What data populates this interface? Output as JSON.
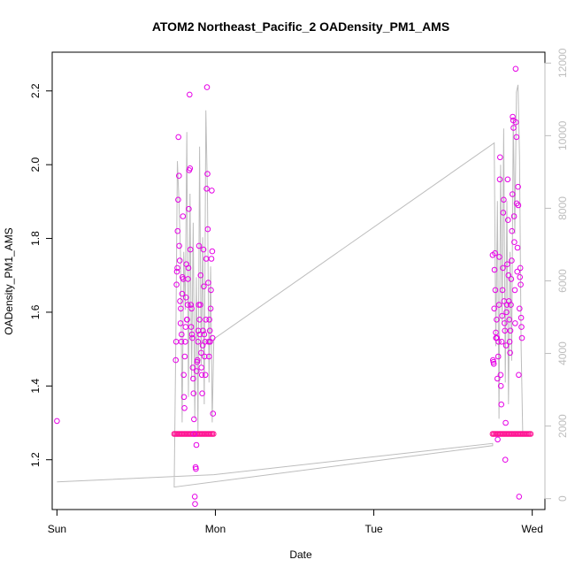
{
  "chart_data": {
    "type": "scatter",
    "title": "ATOM2 Northeast_Pacific_2 OADensity_PM1_AMS",
    "xlabel": "Date",
    "ylabel": "OADensity_PM1_AMS",
    "x_ticks": [
      "Sun",
      "Mon",
      "Tue",
      "Wed"
    ],
    "xlim_days": [
      -0.03,
      3.08
    ],
    "ylim": [
      1.065,
      2.305
    ],
    "y_ticks": [
      1.2,
      1.4,
      1.6,
      1.8,
      2.0,
      2.2
    ],
    "y_tick_labels": [
      "1.2",
      "1.4",
      "1.6",
      "1.8",
      "2.0",
      "2.2"
    ],
    "y2_ticks": [
      0,
      2000,
      4000,
      6000,
      8000,
      10000,
      12000
    ],
    "y2_tick_labels": [
      "0",
      "2000",
      "4000",
      "6000",
      "8000",
      "10000",
      "12000"
    ],
    "y2lim": [
      -300,
      12300
    ],
    "grid": false,
    "colors": {
      "points": "#e600e6",
      "band": "#ff1493",
      "line": "#bdbdbd"
    },
    "series": [
      {
        "kind": "points",
        "points": [
          [
            0.0,
            1.305
          ],
          [
            0.75,
            1.47
          ],
          [
            0.752,
            1.52
          ],
          [
            0.755,
            1.675
          ],
          [
            0.757,
            1.71
          ],
          [
            0.76,
            1.72
          ],
          [
            0.762,
            1.82
          ],
          [
            0.765,
            1.905
          ],
          [
            0.767,
            2.075
          ],
          [
            0.77,
            1.97
          ],
          [
            0.772,
            1.78
          ],
          [
            0.775,
            1.74
          ],
          [
            0.777,
            1.63
          ],
          [
            0.78,
            1.57
          ],
          [
            0.782,
            1.61
          ],
          [
            0.785,
            1.52
          ],
          [
            0.787,
            1.54
          ],
          [
            0.79,
            1.65
          ],
          [
            0.792,
            1.695
          ],
          [
            0.795,
            1.86
          ],
          [
            0.797,
            1.69
          ],
          [
            0.8,
            1.43
          ],
          [
            0.802,
            1.37
          ],
          [
            0.805,
            1.34
          ],
          [
            0.807,
            1.48
          ],
          [
            0.81,
            1.52
          ],
          [
            0.812,
            1.56
          ],
          [
            0.815,
            1.64
          ],
          [
            0.817,
            1.73
          ],
          [
            0.82,
            1.58
          ],
          [
            0.822,
            1.58
          ],
          [
            0.825,
            1.62
          ],
          [
            0.827,
            1.69
          ],
          [
            0.83,
            1.72
          ],
          [
            0.832,
            1.88
          ],
          [
            0.835,
            1.985
          ],
          [
            0.837,
            2.19
          ],
          [
            0.84,
            1.99
          ],
          [
            0.842,
            1.77
          ],
          [
            0.845,
            1.62
          ],
          [
            0.847,
            1.56
          ],
          [
            0.85,
            1.61
          ],
          [
            0.852,
            1.54
          ],
          [
            0.855,
            1.53
          ],
          [
            0.857,
            1.45
          ],
          [
            0.86,
            1.42
          ],
          [
            0.862,
            1.38
          ],
          [
            0.865,
            1.31
          ],
          [
            0.867,
            1.27
          ],
          [
            0.87,
            1.1
          ],
          [
            0.872,
            1.08
          ],
          [
            0.875,
            1.18
          ],
          [
            0.877,
            1.175
          ],
          [
            0.88,
            1.24
          ],
          [
            0.882,
            1.44
          ],
          [
            0.885,
            1.465
          ],
          [
            0.887,
            1.47
          ],
          [
            0.89,
            1.52
          ],
          [
            0.892,
            1.55
          ],
          [
            0.895,
            1.62
          ],
          [
            0.897,
            1.78
          ],
          [
            0.9,
            1.58
          ],
          [
            0.902,
            1.54
          ],
          [
            0.905,
            1.62
          ],
          [
            0.907,
            1.7
          ],
          [
            0.91,
            1.49
          ],
          [
            0.912,
            1.45
          ],
          [
            0.915,
            1.43
          ],
          [
            0.917,
            1.38
          ],
          [
            0.92,
            1.51
          ],
          [
            0.922,
            1.55
          ],
          [
            0.925,
            1.77
          ],
          [
            0.927,
            1.67
          ],
          [
            0.93,
            1.54
          ],
          [
            0.932,
            1.48
          ],
          [
            0.935,
            1.52
          ],
          [
            0.937,
            1.43
          ],
          [
            0.94,
            1.58
          ],
          [
            0.942,
            1.745
          ],
          [
            0.945,
            1.935
          ],
          [
            0.947,
            2.21
          ],
          [
            0.95,
            1.975
          ],
          [
            0.952,
            1.825
          ],
          [
            0.955,
            1.68
          ],
          [
            0.957,
            1.52
          ],
          [
            0.96,
            1.48
          ],
          [
            0.962,
            1.58
          ],
          [
            0.965,
            1.55
          ],
          [
            0.967,
            1.52
          ],
          [
            0.97,
            1.61
          ],
          [
            0.972,
            1.66
          ],
          [
            0.975,
            1.745
          ],
          [
            0.977,
            1.93
          ],
          [
            0.98,
            1.765
          ],
          [
            0.982,
            1.53
          ],
          [
            0.985,
            1.325
          ],
          [
            2.75,
            1.755
          ],
          [
            2.752,
            1.47
          ],
          [
            2.755,
            1.465
          ],
          [
            2.757,
            1.46
          ],
          [
            2.76,
            1.61
          ],
          [
            2.762,
            1.715
          ],
          [
            2.765,
            1.76
          ],
          [
            2.767,
            1.66
          ],
          [
            2.77,
            1.545
          ],
          [
            2.772,
            1.53
          ],
          [
            2.775,
            1.58
          ],
          [
            2.777,
            1.53
          ],
          [
            2.78,
            1.42
          ],
          [
            2.782,
            1.255
          ],
          [
            2.785,
            1.48
          ],
          [
            2.787,
            1.52
          ],
          [
            2.79,
            1.62
          ],
          [
            2.792,
            1.75
          ],
          [
            2.795,
            1.96
          ],
          [
            2.797,
            2.02
          ],
          [
            2.8,
            1.43
          ],
          [
            2.802,
            1.4
          ],
          [
            2.805,
            1.35
          ],
          [
            2.807,
            1.52
          ],
          [
            2.81,
            1.59
          ],
          [
            2.812,
            1.66
          ],
          [
            2.815,
            1.72
          ],
          [
            2.817,
            1.87
          ],
          [
            2.82,
            1.905
          ],
          [
            2.822,
            1.63
          ],
          [
            2.825,
            1.57
          ],
          [
            2.827,
            1.55
          ],
          [
            2.83,
            1.2
          ],
          [
            2.832,
            1.3
          ],
          [
            2.835,
            1.51
          ],
          [
            2.837,
            1.6
          ],
          [
            2.84,
            1.62
          ],
          [
            2.842,
            1.73
          ],
          [
            2.845,
            1.96
          ],
          [
            2.847,
            1.85
          ],
          [
            2.85,
            1.7
          ],
          [
            2.852,
            1.63
          ],
          [
            2.855,
            1.58
          ],
          [
            2.857,
            1.52
          ],
          [
            2.86,
            1.49
          ],
          [
            2.862,
            1.55
          ],
          [
            2.865,
            1.62
          ],
          [
            2.867,
            1.69
          ],
          [
            2.87,
            1.74
          ],
          [
            2.872,
            1.82
          ],
          [
            2.875,
            1.92
          ],
          [
            2.877,
            2.13
          ],
          [
            2.88,
            2.12
          ],
          [
            2.882,
            2.1
          ],
          [
            2.885,
            1.86
          ],
          [
            2.887,
            1.79
          ],
          [
            2.89,
            1.66
          ],
          [
            2.892,
            1.57
          ],
          [
            2.895,
            2.26
          ],
          [
            2.897,
            2.115
          ],
          [
            2.9,
            2.075
          ],
          [
            2.902,
            1.895
          ],
          [
            2.905,
            1.71
          ],
          [
            2.907,
            1.775
          ],
          [
            2.91,
            1.94
          ],
          [
            2.912,
            1.89
          ],
          [
            2.915,
            1.43
          ],
          [
            2.917,
            1.1
          ],
          [
            2.92,
            1.61
          ],
          [
            2.922,
            1.695
          ],
          [
            2.925,
            1.72
          ],
          [
            2.927,
            1.675
          ],
          [
            2.93,
            1.585
          ],
          [
            2.932,
            1.56
          ],
          [
            2.935,
            1.53
          ]
        ]
      },
      {
        "kind": "band",
        "y": 1.27,
        "ranges": [
          [
            0.74,
            0.99
          ],
          [
            2.75,
            2.99
          ]
        ]
      },
      {
        "kind": "line",
        "axis": "right",
        "points": [
          [
            0.0,
            460
          ],
          [
            0.99,
            660
          ],
          [
            2.75,
            1520
          ],
          [
            2.75,
            1460
          ],
          [
            0.74,
            320
          ],
          [
            0.75,
            4200
          ],
          [
            0.76,
            9300
          ],
          [
            0.77,
            8200
          ],
          [
            0.78,
            6700
          ],
          [
            0.79,
            2100
          ],
          [
            0.8,
            6800
          ],
          [
            0.81,
            5200
          ],
          [
            0.82,
            10100
          ],
          [
            0.83,
            2800
          ],
          [
            0.84,
            8400
          ],
          [
            0.85,
            3300
          ],
          [
            0.86,
            7600
          ],
          [
            0.87,
            2200
          ],
          [
            0.88,
            6100
          ],
          [
            0.89,
            1800
          ],
          [
            0.9,
            9700
          ],
          [
            0.91,
            3700
          ],
          [
            0.92,
            7200
          ],
          [
            0.93,
            2600
          ],
          [
            0.94,
            10700
          ],
          [
            0.95,
            8400
          ],
          [
            0.96,
            3200
          ],
          [
            0.97,
            6400
          ],
          [
            0.98,
            2100
          ],
          [
            0.99,
            4400
          ],
          [
            2.76,
            9800
          ],
          [
            2.77,
            4200
          ],
          [
            2.78,
            8200
          ],
          [
            2.79,
            2200
          ],
          [
            2.8,
            9200
          ],
          [
            2.81,
            4800
          ],
          [
            2.82,
            10200
          ],
          [
            2.83,
            3200
          ],
          [
            2.84,
            8200
          ],
          [
            2.85,
            2600
          ],
          [
            2.86,
            6800
          ],
          [
            2.87,
            3800
          ],
          [
            2.88,
            10500
          ],
          [
            2.89,
            7300
          ],
          [
            2.9,
            11200
          ],
          [
            2.91,
            11400
          ],
          [
            2.92,
            9400
          ],
          [
            2.93,
            4200
          ],
          [
            2.94,
            1800
          ]
        ]
      }
    ]
  }
}
